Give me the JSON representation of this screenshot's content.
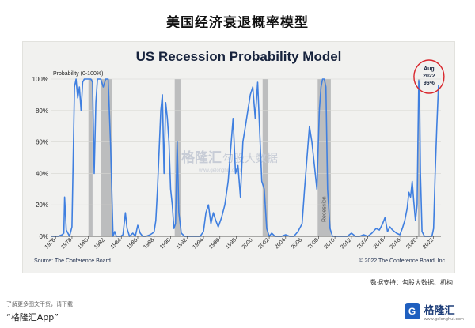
{
  "header": {
    "title": "美国经济衰退概率模型"
  },
  "chart_data": {
    "type": "area",
    "title": "US Recession Probability Model",
    "ylabel": "Probability (0-100%)",
    "xlabel": "",
    "xlim": [
      1975.5,
      2022.9
    ],
    "ylim": [
      0,
      100
    ],
    "y_ticks": [
      0,
      20,
      40,
      60,
      80,
      100
    ],
    "y_tick_labels": [
      "0%",
      "20%",
      "40%",
      "60%",
      "80%",
      "100%"
    ],
    "x_ticks": [
      1976,
      1978,
      1980,
      1982,
      1984,
      1986,
      1988,
      1990,
      1992,
      1994,
      1996,
      1998,
      2000,
      2002,
      2004,
      2006,
      2008,
      2010,
      2012,
      2014,
      2016,
      2018,
      2020,
      2022
    ],
    "recessions": [
      [
        1980.0,
        1980.5
      ],
      [
        1981.5,
        1982.9
      ],
      [
        1990.5,
        1991.2
      ],
      [
        2001.2,
        2001.9
      ],
      [
        2007.9,
        2009.5
      ],
      [
        2020.1,
        2020.4
      ]
    ],
    "recession_label": "Recession",
    "series": [
      {
        "x": [
          1975.5,
          1976.3,
          1976.8,
          1977.0,
          1977.1,
          1977.3,
          1977.5,
          1977.7,
          1978.0,
          1978.3,
          1978.5,
          1978.7,
          1978.9,
          1979.1,
          1979.3,
          1979.5,
          1979.7,
          1980.0,
          1980.3,
          1980.5,
          1980.7,
          1980.9,
          1981.1,
          1981.3,
          1981.5,
          1981.8,
          1982.1,
          1982.4,
          1982.7,
          1983.0,
          1983.2,
          1983.4,
          1983.6,
          1983.9,
          1984.2,
          1984.5,
          1984.7,
          1985.0,
          1985.4,
          1985.7,
          1986.0,
          1986.3,
          1986.6,
          1987.0,
          1987.5,
          1987.8,
          1988.0,
          1988.2,
          1988.4,
          1988.6,
          1988.8,
          1989.0,
          1989.2,
          1989.4,
          1989.6,
          1989.8,
          1990.0,
          1990.2,
          1990.4,
          1990.6,
          1990.8,
          1991.0,
          1991.3,
          1991.7,
          1992.2,
          1993.0,
          1993.6,
          1994.0,
          1994.3,
          1994.6,
          1994.9,
          1995.2,
          1995.5,
          1995.8,
          1996.2,
          1996.6,
          1997.0,
          1997.3,
          1997.6,
          1997.9,
          1998.2,
          1998.5,
          1998.8,
          1999.1,
          1999.4,
          1999.7,
          2000.0,
          2000.3,
          2000.6,
          2000.9,
          2001.1,
          2001.4,
          2001.7,
          2002.0,
          2002.3,
          2002.7,
          2003.0,
          2003.5,
          2004.0,
          2004.5,
          2005.0,
          2005.5,
          2006.0,
          2006.3,
          2006.6,
          2006.9,
          2007.2,
          2007.5,
          2007.8,
          2008.1,
          2008.3,
          2008.5,
          2008.7,
          2008.9,
          2009.1,
          2009.4,
          2009.7,
          2010.0,
          2010.5,
          2011.0,
          2011.5,
          2012.0,
          2012.5,
          2013.0,
          2013.5,
          2014.0,
          2014.5,
          2015.0,
          2015.4,
          2015.8,
          2016.1,
          2016.4,
          2016.7,
          2017.0,
          2017.5,
          2017.9,
          2018.2,
          2018.5,
          2018.8,
          2019.0,
          2019.2,
          2019.4,
          2019.6,
          2019.8,
          2020.0,
          2020.1,
          2020.2,
          2020.3,
          2020.4,
          2020.6,
          2020.9,
          2021.2,
          2021.5,
          2021.8,
          2022.0,
          2022.2,
          2022.4,
          2022.6
        ],
        "y": [
          0,
          0,
          1,
          2,
          25,
          4,
          2,
          0,
          6,
          95,
          100,
          88,
          95,
          80,
          98,
          100,
          100,
          100,
          100,
          98,
          40,
          85,
          100,
          100,
          100,
          95,
          100,
          100,
          58,
          0,
          3,
          0,
          0,
          0,
          1,
          15,
          5,
          0,
          2,
          0,
          7,
          2,
          0,
          0,
          1,
          2,
          3,
          10,
          30,
          55,
          80,
          90,
          40,
          85,
          75,
          60,
          30,
          20,
          5,
          8,
          60,
          15,
          2,
          0,
          0,
          0,
          0,
          3,
          15,
          20,
          8,
          15,
          10,
          6,
          12,
          20,
          35,
          55,
          75,
          40,
          45,
          25,
          60,
          70,
          80,
          90,
          95,
          75,
          98,
          60,
          35,
          30,
          5,
          0,
          2,
          0,
          0,
          0,
          1,
          0,
          0,
          3,
          8,
          30,
          50,
          70,
          60,
          45,
          30,
          80,
          95,
          100,
          100,
          95,
          30,
          5,
          0,
          0,
          0,
          0,
          0,
          2,
          0,
          0,
          1,
          0,
          2,
          5,
          4,
          8,
          12,
          3,
          6,
          4,
          2,
          1,
          5,
          10,
          18,
          28,
          25,
          35,
          22,
          10,
          20,
          60,
          99,
          90,
          40,
          3,
          0,
          0,
          0,
          0,
          5,
          40,
          70,
          96
        ]
      }
    ],
    "annotation": {
      "month": "Aug",
      "year": "2022",
      "value": "96%",
      "x": 2022.6,
      "y": 96
    },
    "watermark": {
      "brand": "格隆汇",
      "partner": "勾股大数据",
      "site": "www.gelonghui.com"
    }
  },
  "source": {
    "left": "Source: The Conference Board",
    "right": "© 2022 The Conference Board, Inc"
  },
  "data_support": "数据支持：勾股大数据、机构",
  "footer": {
    "note": "了解更多图文干货，请下载",
    "app": "“格隆汇App”",
    "logo_mark": "G",
    "logo_text": "格隆汇",
    "logo_sub": "www.gelonghui.com"
  }
}
